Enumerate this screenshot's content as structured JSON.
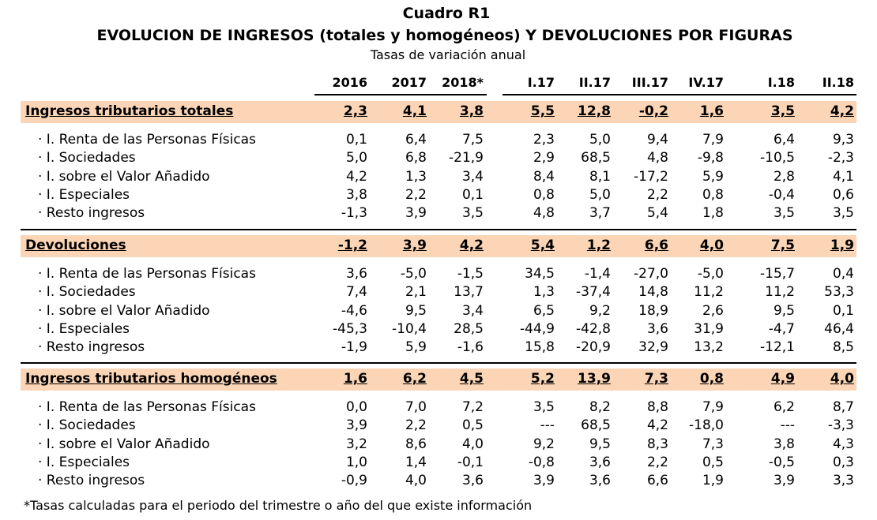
{
  "table_number": "Cuadro R1",
  "title": "EVOLUCION DE INGRESOS (totales y homogéneos) Y DEVOLUCIONES POR FIGURAS",
  "subtitle": "Tasas de variación anual",
  "columns": [
    "2016",
    "2017",
    "2018*",
    "I.17",
    "II.17",
    "III.17",
    "IV.17",
    "I.18",
    "II.18"
  ],
  "sections": [
    {
      "title": "Ingresos tributarios totales",
      "totals": [
        "2,3",
        "4,1",
        "3,8",
        "5,5",
        "12,8",
        "-0,2",
        "1,6",
        "3,5",
        "4,2"
      ],
      "rows": [
        {
          "label": "· I. Renta de las Personas Físicas",
          "values": [
            "0,1",
            "6,4",
            "7,5",
            "2,3",
            "5,0",
            "9,4",
            "7,9",
            "6,4",
            "9,3"
          ]
        },
        {
          "label": "· I. Sociedades",
          "values": [
            "5,0",
            "6,8",
            "-21,9",
            "2,9",
            "68,5",
            "4,8",
            "-9,8",
            "-10,5",
            "-2,3"
          ]
        },
        {
          "label": "· I. sobre el Valor Añadido",
          "values": [
            "4,2",
            "1,3",
            "3,4",
            "8,4",
            "8,1",
            "-17,2",
            "5,9",
            "2,8",
            "4,1"
          ]
        },
        {
          "label": "· I. Especiales",
          "values": [
            "3,8",
            "2,2",
            "0,1",
            "0,8",
            "5,0",
            "2,2",
            "0,8",
            "-0,4",
            "0,6"
          ]
        },
        {
          "label": "· Resto ingresos",
          "values": [
            "-1,3",
            "3,9",
            "3,5",
            "4,8",
            "3,7",
            "5,4",
            "1,8",
            "3,5",
            "3,5"
          ]
        }
      ]
    },
    {
      "title": "Devoluciones",
      "totals": [
        "-1,2",
        "3,9",
        "4,2",
        "5,4",
        "1,2",
        "6,6",
        "4,0",
        "7,5",
        "1,9"
      ],
      "rows": [
        {
          "label": "· I. Renta de las Personas Físicas",
          "values": [
            "3,6",
            "-5,0",
            "-1,5",
            "34,5",
            "-1,4",
            "-27,0",
            "-5,0",
            "-15,7",
            "0,4"
          ]
        },
        {
          "label": "· I. Sociedades",
          "values": [
            "7,4",
            "2,1",
            "13,7",
            "1,3",
            "-37,4",
            "14,8",
            "11,2",
            "11,2",
            "53,3"
          ]
        },
        {
          "label": "· I. sobre el Valor Añadido",
          "values": [
            "-4,6",
            "9,5",
            "3,4",
            "6,5",
            "9,2",
            "18,9",
            "2,6",
            "9,5",
            "0,1"
          ]
        },
        {
          "label": "· I. Especiales",
          "values": [
            "-45,3",
            "-10,4",
            "28,5",
            "-44,9",
            "-42,8",
            "3,6",
            "31,9",
            "-4,7",
            "46,4"
          ]
        },
        {
          "label": "· Resto ingresos",
          "values": [
            "-1,9",
            "5,9",
            "-1,6",
            "15,8",
            "-20,9",
            "32,9",
            "13,2",
            "-12,1",
            "8,5"
          ]
        }
      ]
    },
    {
      "title": "Ingresos tributarios homogéneos",
      "totals": [
        "1,6",
        "6,2",
        "4,5",
        "5,2",
        "13,9",
        "7,3",
        "0,8",
        "4,9",
        "4,0"
      ],
      "rows": [
        {
          "label": "· I. Renta de las Personas Físicas",
          "values": [
            "0,0",
            "7,0",
            "7,2",
            "3,5",
            "8,2",
            "8,8",
            "7,9",
            "6,2",
            "8,7"
          ]
        },
        {
          "label": "· I. Sociedades",
          "values": [
            "3,9",
            "2,2",
            "0,5",
            "---",
            "68,5",
            "4,2",
            "-18,0",
            "---",
            "-3,3"
          ]
        },
        {
          "label": "· I. sobre el Valor Añadido",
          "values": [
            "3,2",
            "8,6",
            "4,0",
            "9,2",
            "9,5",
            "8,3",
            "7,3",
            "3,8",
            "4,3"
          ]
        },
        {
          "label": "· I. Especiales",
          "values": [
            "1,0",
            "1,4",
            "-0,1",
            "-0,8",
            "3,6",
            "2,2",
            "0,5",
            "-0,5",
            "0,3"
          ]
        },
        {
          "label": "· Resto ingresos",
          "values": [
            "-0,9",
            "4,0",
            "3,6",
            "3,9",
            "3,6",
            "6,6",
            "1,9",
            "3,9",
            "3,3"
          ]
        }
      ]
    }
  ],
  "footnote": "*Tasas calculadas para el periodo del trimestre o año del que existe información",
  "colors": {
    "section_band": "#fbd5b5",
    "text": "#000000"
  }
}
